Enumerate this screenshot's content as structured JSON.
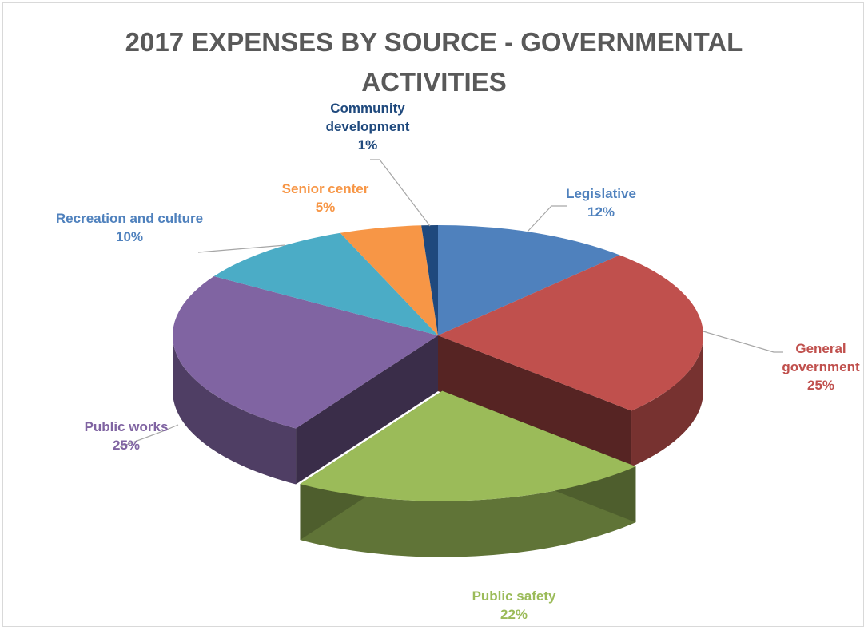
{
  "chart_data": {
    "type": "pie",
    "title_lines": [
      "2017 EXPENSES BY SOURCE - GOVERNMENTAL",
      "ACTIVITIES"
    ],
    "slices": [
      {
        "label_lines": [
          "Legislative"
        ],
        "percent_label": "12%",
        "value": 12,
        "color": "#4f81bd"
      },
      {
        "label_lines": [
          "General",
          "government"
        ],
        "percent_label": "25%",
        "value": 25,
        "color": "#c0504d"
      },
      {
        "label_lines": [
          "Public safety"
        ],
        "percent_label": "22%",
        "value": 22,
        "color": "#9bbb59",
        "exploded": true
      },
      {
        "label_lines": [
          "Public works"
        ],
        "percent_label": "25%",
        "value": 25,
        "color": "#8064a2"
      },
      {
        "label_lines": [
          "Recreation and culture"
        ],
        "percent_label": "10%",
        "value": 10,
        "color": "#4bacc6"
      },
      {
        "label_lines": [
          "Senior center"
        ],
        "percent_label": "5%",
        "value": 5,
        "color": "#f79646"
      },
      {
        "label_lines": [
          "Community",
          "development"
        ],
        "percent_label": "1%",
        "value": 1,
        "color": "#1f497d"
      }
    ],
    "style": "3d-pie",
    "legend": "none"
  }
}
